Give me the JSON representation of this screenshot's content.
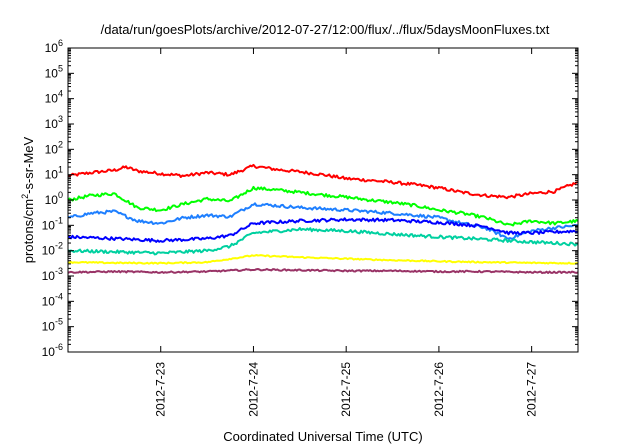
{
  "chart_data": {
    "type": "line",
    "title": "/data/run/goesPlots/archive/2012-07-27/12:00/flux/../flux/5daysMoonFluxes.txt",
    "xlabel": "Coordinated Universal Time (UTC)",
    "ylabel_parts": [
      "protons/cm",
      "2",
      "-s-sr-MeV"
    ],
    "yscale": "log",
    "ylim": [
      1e-06,
      1000000.0
    ],
    "y_tick_labels": [
      {
        "exp": -6,
        "base": "10",
        "sup": "-6"
      },
      {
        "exp": -5,
        "base": "10",
        "sup": "-5"
      },
      {
        "exp": -4,
        "base": "10",
        "sup": "-4"
      },
      {
        "exp": -3,
        "base": "10",
        "sup": "-3"
      },
      {
        "exp": -2,
        "base": "10",
        "sup": "-2"
      },
      {
        "exp": -1,
        "base": "10",
        "sup": "-1"
      },
      {
        "exp": 0,
        "base": "10",
        "sup": "0"
      },
      {
        "exp": 1,
        "base": "10",
        "sup": "1"
      },
      {
        "exp": 2,
        "base": "10",
        "sup": "2"
      },
      {
        "exp": 3,
        "base": "10",
        "sup": "3"
      },
      {
        "exp": 4,
        "base": "10",
        "sup": "4"
      },
      {
        "exp": 5,
        "base": "10",
        "sup": "5"
      },
      {
        "exp": 6,
        "base": "10",
        "sup": "6"
      }
    ],
    "xlim": [
      "2012-07-22 00:00",
      "2012-07-27 12:00"
    ],
    "x_tick_labels": [
      {
        "date": "2012-07-23",
        "label": "2012-7-23"
      },
      {
        "date": "2012-07-24",
        "label": "2012-7-24"
      },
      {
        "date": "2012-07-25",
        "label": "2012-7-25"
      },
      {
        "date": "2012-07-26",
        "label": "2012-7-26"
      },
      {
        "date": "2012-07-27",
        "label": "2012-7-27"
      }
    ],
    "grid": false,
    "legend": "none",
    "series": [
      {
        "color": "#ff0000",
        "x": [
          "2012-07-22 00:00",
          "2012-07-22 06:00",
          "2012-07-22 12:00",
          "2012-07-22 15:00",
          "2012-07-22 18:00",
          "2012-07-23 00:00",
          "2012-07-23 06:00",
          "2012-07-23 12:00",
          "2012-07-23 18:00",
          "2012-07-24 00:00",
          "2012-07-24 06:00",
          "2012-07-24 12:00",
          "2012-07-24 18:00",
          "2012-07-25 00:00",
          "2012-07-25 06:00",
          "2012-07-25 12:00",
          "2012-07-25 18:00",
          "2012-07-26 00:00",
          "2012-07-26 06:00",
          "2012-07-26 12:00",
          "2012-07-26 18:00",
          "2012-07-27 00:00",
          "2012-07-27 06:00",
          "2012-07-27 12:00"
        ],
        "y": [
          9,
          12,
          15,
          20,
          14,
          11,
          9,
          12,
          10,
          22,
          16,
          13,
          10,
          7,
          6,
          5,
          4,
          3,
          2,
          1.5,
          1.3,
          1.8,
          2.2,
          5
        ]
      },
      {
        "color": "#00ff00",
        "x": [
          "2012-07-22 00:00",
          "2012-07-22 06:00",
          "2012-07-22 12:00",
          "2012-07-22 18:00",
          "2012-07-23 00:00",
          "2012-07-23 06:00",
          "2012-07-23 12:00",
          "2012-07-23 18:00",
          "2012-07-24 00:00",
          "2012-07-24 06:00",
          "2012-07-24 12:00",
          "2012-07-24 18:00",
          "2012-07-25 00:00",
          "2012-07-25 06:00",
          "2012-07-25 12:00",
          "2012-07-25 18:00",
          "2012-07-26 00:00",
          "2012-07-26 06:00",
          "2012-07-26 12:00",
          "2012-07-26 18:00",
          "2012-07-27 00:00",
          "2012-07-27 06:00",
          "2012-07-27 12:00"
        ],
        "y": [
          1,
          1.5,
          1.8,
          0.5,
          0.4,
          0.7,
          1.1,
          0.9,
          3,
          2.5,
          2,
          1.6,
          1.3,
          1,
          0.8,
          0.6,
          0.4,
          0.3,
          0.2,
          0.1,
          0.15,
          0.12,
          0.15
        ]
      },
      {
        "color": "#1e7fff",
        "x": [
          "2012-07-22 00:00",
          "2012-07-22 06:00",
          "2012-07-22 12:00",
          "2012-07-22 18:00",
          "2012-07-23 00:00",
          "2012-07-23 06:00",
          "2012-07-23 12:00",
          "2012-07-23 18:00",
          "2012-07-24 00:00",
          "2012-07-24 06:00",
          "2012-07-24 12:00",
          "2012-07-24 18:00",
          "2012-07-25 00:00",
          "2012-07-25 06:00",
          "2012-07-25 12:00",
          "2012-07-25 18:00",
          "2012-07-26 00:00",
          "2012-07-26 06:00",
          "2012-07-26 12:00",
          "2012-07-26 18:00",
          "2012-07-27 00:00",
          "2012-07-27 06:00",
          "2012-07-27 12:00"
        ],
        "y": [
          0.2,
          0.3,
          0.35,
          0.15,
          0.12,
          0.2,
          0.25,
          0.22,
          0.7,
          0.6,
          0.5,
          0.45,
          0.4,
          0.35,
          0.3,
          0.25,
          0.2,
          0.12,
          0.08,
          0.03,
          0.06,
          0.08,
          0.1
        ]
      },
      {
        "color": "#0000ff",
        "x": [
          "2012-07-22 00:00",
          "2012-07-22 12:00",
          "2012-07-23 00:00",
          "2012-07-23 12:00",
          "2012-07-23 18:00",
          "2012-07-24 00:00",
          "2012-07-24 12:00",
          "2012-07-25 00:00",
          "2012-07-25 12:00",
          "2012-07-26 00:00",
          "2012-07-26 06:00",
          "2012-07-26 12:00",
          "2012-07-26 18:00",
          "2012-07-27 00:00",
          "2012-07-27 12:00"
        ],
        "y": [
          0.035,
          0.03,
          0.025,
          0.03,
          0.04,
          0.12,
          0.15,
          0.17,
          0.16,
          0.13,
          0.11,
          0.09,
          0.05,
          0.05,
          0.06
        ]
      },
      {
        "color": "#00d0a0",
        "x": [
          "2012-07-22 00:00",
          "2012-07-22 12:00",
          "2012-07-23 00:00",
          "2012-07-23 12:00",
          "2012-07-23 18:00",
          "2012-07-24 00:00",
          "2012-07-24 12:00",
          "2012-07-25 00:00",
          "2012-07-25 12:00",
          "2012-07-26 00:00",
          "2012-07-26 12:00",
          "2012-07-27 00:00",
          "2012-07-27 12:00"
        ],
        "y": [
          0.01,
          0.009,
          0.008,
          0.01,
          0.015,
          0.05,
          0.07,
          0.06,
          0.045,
          0.035,
          0.028,
          0.022,
          0.018
        ]
      },
      {
        "color": "#ffff00",
        "x": [
          "2012-07-22 00:00",
          "2012-07-22 12:00",
          "2012-07-23 00:00",
          "2012-07-23 12:00",
          "2012-07-24 00:00",
          "2012-07-24 12:00",
          "2012-07-25 00:00",
          "2012-07-25 12:00",
          "2012-07-26 00:00",
          "2012-07-26 12:00",
          "2012-07-27 00:00",
          "2012-07-27 12:00"
        ],
        "y": [
          0.0035,
          0.0033,
          0.0032,
          0.0035,
          0.0065,
          0.0055,
          0.0048,
          0.0042,
          0.0038,
          0.0035,
          0.0033,
          0.0032
        ]
      },
      {
        "color": "#993366",
        "x": [
          "2012-07-22 00:00",
          "2012-07-22 12:00",
          "2012-07-23 00:00",
          "2012-07-23 12:00",
          "2012-07-24 00:00",
          "2012-07-24 12:00",
          "2012-07-25 00:00",
          "2012-07-25 12:00",
          "2012-07-26 00:00",
          "2012-07-26 12:00",
          "2012-07-27 00:00",
          "2012-07-27 12:00"
        ],
        "y": [
          0.0014,
          0.0015,
          0.0014,
          0.0015,
          0.0018,
          0.0017,
          0.0016,
          0.0016,
          0.0015,
          0.0015,
          0.0014,
          0.0014
        ]
      }
    ]
  }
}
